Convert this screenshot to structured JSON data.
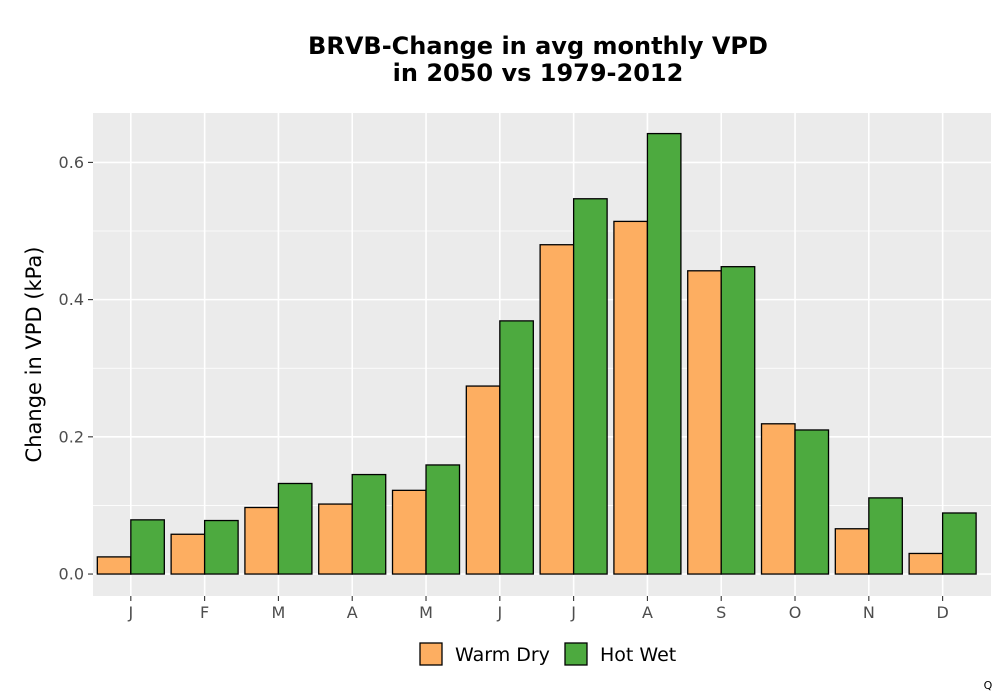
{
  "chart_data": {
    "type": "bar",
    "title_line1": "BRVB-Change in avg monthly VPD",
    "title_line2": "in 2050 vs 1979-2012",
    "xlabel": "",
    "ylabel": "Change in VPD (kPa)",
    "categories": [
      "J",
      "F",
      "M",
      "A",
      "M",
      "J",
      "J",
      "A",
      "S",
      "O",
      "N",
      "D"
    ],
    "series": [
      {
        "name": "Warm Dry",
        "color": "#fdae61",
        "values": [
          0.025,
          0.058,
          0.097,
          0.102,
          0.122,
          0.274,
          0.48,
          0.514,
          0.442,
          0.219,
          0.066,
          0.03
        ]
      },
      {
        "name": "Hot Wet",
        "color": "#4daa3f",
        "values": [
          0.079,
          0.078,
          0.132,
          0.145,
          0.159,
          0.369,
          0.547,
          0.642,
          0.448,
          0.21,
          0.111,
          0.089
        ]
      }
    ],
    "ylim": [
      -0.032,
      0.672
    ],
    "yticks": [
      0.0,
      0.2,
      0.4,
      0.6
    ],
    "ytick_labels": [
      "0.0",
      "0.2",
      "0.4",
      "0.6"
    ],
    "grid": true,
    "legend_position": "bottom",
    "panel_background": "#ebebeb",
    "grid_color": "#ffffff",
    "bar_outline_color": "#000000"
  },
  "corner_note": "Q"
}
